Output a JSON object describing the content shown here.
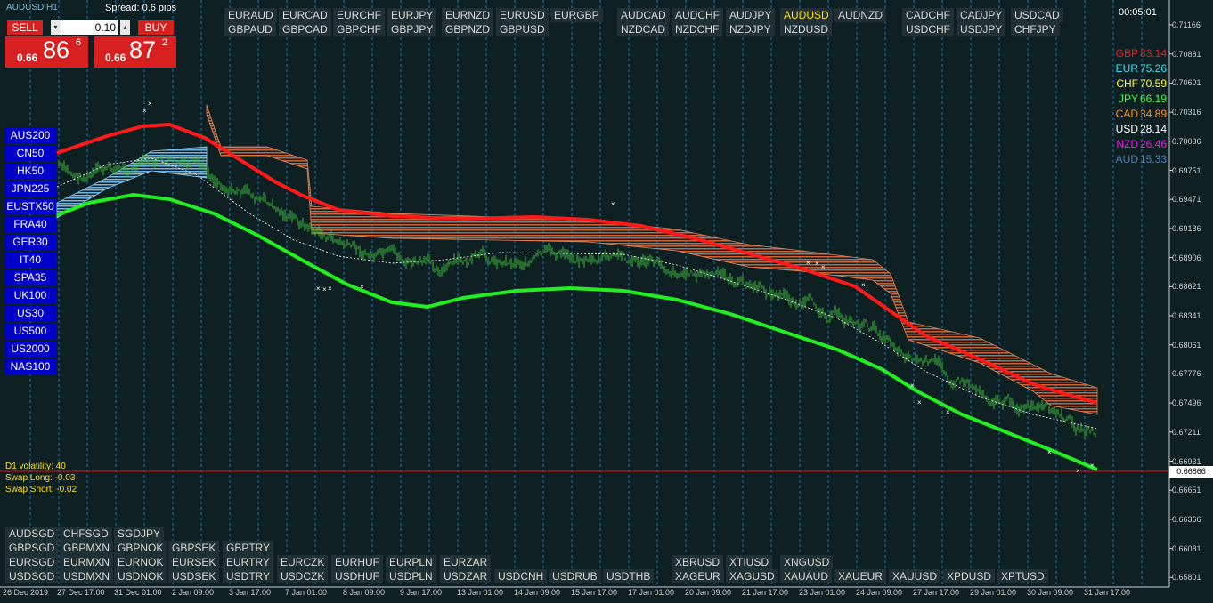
{
  "window": {
    "symbol_title": "AUDUSD,H1",
    "spread": "Spread: 0.6 pips",
    "timer": "00:05:01"
  },
  "trade": {
    "sell_label": "SELL",
    "buy_label": "BUY",
    "lot": "0.10",
    "sell_small": "0.66",
    "sell_big": "86",
    "sell_sup": "6",
    "buy_small": "0.66",
    "buy_big": "87",
    "buy_sup": "2"
  },
  "pairs_top": [
    [
      "EURAUD",
      "EURCAD",
      "EURCHF",
      "EURJPY",
      "EURNZD",
      "EURUSD",
      "EURGBP"
    ],
    [
      "GBPAUD",
      "GBPCAD",
      "GBPCHF",
      "GBPJPY",
      "GBPNZD",
      "GBPUSD"
    ],
    [
      "AUDCAD",
      "AUDCHF",
      "AUDJPY",
      "AUDUSD",
      "AUDNZD"
    ],
    [
      "NZDCAD",
      "NZDCHF",
      "NZDJPY",
      "NZDUSD"
    ],
    [
      "CADCHF",
      "CADJPY",
      "USDCAD"
    ],
    [
      "USDCHF",
      "USDJPY",
      "CHFJPY"
    ]
  ],
  "pairs_bottom": [
    [
      "AUDSGD",
      "CHFSGD",
      "SGDJPY"
    ],
    [
      "GBPSGD",
      "GBPMXN",
      "GBPNOK",
      "GBPSEK",
      "GBPTRY"
    ],
    [
      "EURSGD",
      "EURMXN",
      "EURNOK",
      "EURSEK",
      "EURTRY",
      "EURCZK",
      "EURHUF",
      "EURPLN",
      "EURZAR"
    ],
    [
      "USDSGD",
      "USDMXN",
      "USDNOK",
      "USDSEK",
      "USDTRY",
      "USDCZK",
      "USDHUF",
      "USDPLN",
      "USDZAR",
      "USDCNH",
      "USDRUB",
      "USDTHB"
    ],
    [
      "XBRUSD",
      "XTIUSD",
      "XNGUSD"
    ],
    [
      "XAGEUR",
      "XAGUSD",
      "XAUAUD",
      "XAUEUR",
      "XAUUSD",
      "XPDUSD",
      "XPTUSD"
    ]
  ],
  "indices": [
    "AUS200",
    "CN50",
    "HK50",
    "JPN225",
    "EUSTX50",
    "FRA40",
    "GER30",
    "IT40",
    "SPA35",
    "UK100",
    "US30",
    "US500",
    "US2000",
    "NAS100"
  ],
  "strength": [
    {
      "cur": "GBP",
      "val": "83.14",
      "color": "#e02020"
    },
    {
      "cur": "EUR",
      "val": "75.26",
      "color": "#40e0f0"
    },
    {
      "cur": "CHF",
      "val": "70.59",
      "color": "#ffff40"
    },
    {
      "cur": "JPY",
      "val": "66.19",
      "color": "#40ff40"
    },
    {
      "cur": "CAD",
      "val": "34.89",
      "color": "#ff9020"
    },
    {
      "cur": "USD",
      "val": "28.14",
      "color": "#ffffff"
    },
    {
      "cur": "NZD",
      "val": "26.46",
      "color": "#e020e0"
    },
    {
      "cur": "AUD",
      "val": "15.33",
      "color": "#4a7fb0"
    }
  ],
  "info": {
    "volatility": "D1 volatility: 40",
    "swap_long": "Swap Long: -0.03",
    "swap_short": "Swap Short: -0.02"
  },
  "price_axis": [
    "0.71166",
    "0.70881",
    "0.70601",
    "0.70316",
    "0.70036",
    "0.69751",
    "0.69471",
    "0.69186",
    "0.68906",
    "0.68621",
    "0.68341",
    "0.68061",
    "0.67776",
    "0.67496",
    "0.67211",
    "0.66931",
    "0.66651",
    "0.66366",
    "0.66081",
    "0.65801"
  ],
  "current_price": "0.66866",
  "time_axis": [
    "26 Dec 2019",
    "27 Dec 17:00",
    "31 Dec 01:00",
    "2 Jan 09:00",
    "3 Jan 17:00",
    "7 Jan 01:00",
    "8 Jan 09:00",
    "9 Jan 17:00",
    "13 Jan 01:00",
    "14 Jan 09:00",
    "15 Jan 17:00",
    "17 Jan 01:00",
    "20 Jan 09:00",
    "21 Jan 17:00",
    "23 Jan 01:00",
    "24 Jan 09:00",
    "27 Jan 17:00",
    "29 Jan 01:00",
    "30 Jan 09:00",
    "31 Jan 17:00"
  ],
  "colors": {
    "background": "#0f2023",
    "candles": "#3cb83c",
    "upper_ma": "#ff1a1a",
    "lower_ma": "#22ee22",
    "band_fill": "#c86438",
    "button_blue": "#0000c8",
    "trade_red": "#d82020"
  }
}
